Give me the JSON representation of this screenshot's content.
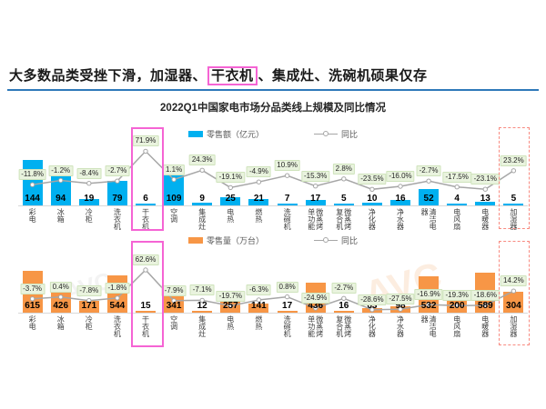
{
  "headline": {
    "prefix": "大多数品类受挫下滑，加湿器、",
    "highlight": "干衣机",
    "suffix": "、集成灶、洗碗机硕果仅存"
  },
  "chart_title": "2022Q1中国家电市场分品类线上规模及同比情况",
  "watermark": "AVC",
  "colors": {
    "blue_bar": "#00B0F0",
    "orange_bar": "#F79646",
    "yoy_line": "#A6A6A6",
    "badge_bg": "#E9F3DE",
    "badge_border": "#CFE3BC",
    "pink_highlight": "#F564D4",
    "red_highlight": "#F88A80",
    "underline_blue": "#2E79B9"
  },
  "chart_data": [
    {
      "type": "bar",
      "name": "retail-value",
      "bar_color": "#00B0F0",
      "legend": [
        "零售额（亿元）",
        "同比"
      ],
      "categories": [
        "彩电",
        "冰箱",
        "冷柜",
        "洗衣机",
        "干衣机",
        "空调",
        "集成灶",
        "电热",
        "燃热",
        "洗碗机",
        "微蒸烤单功能",
        "微蒸烤复合机",
        "净化器",
        "净水器",
        "清洁电器",
        "电风扇",
        "电暖器",
        "加湿器"
      ],
      "series": [
        {
          "name": "零售额（亿元）",
          "values": [
            144,
            94,
            19,
            79,
            6,
            109,
            9,
            25,
            21,
            7,
            17,
            5,
            10,
            16,
            52,
            4,
            13,
            5
          ]
        },
        {
          "name": "同比",
          "unit": "%",
          "values": [
            -11.8,
            -1.2,
            -8.4,
            -2.7,
            71.9,
            1.1,
            24.3,
            -19.1,
            -4.9,
            10.9,
            -15.3,
            2.8,
            -23.5,
            -16.0,
            -2.7,
            -17.5,
            -23.1,
            23.2
          ]
        }
      ],
      "ylim": [
        0,
        150
      ],
      "highlights": [
        {
          "category": "干衣机",
          "style": "pink-solid"
        },
        {
          "category": "加湿器",
          "style": "red-dashed"
        }
      ]
    },
    {
      "type": "bar",
      "name": "retail-volume",
      "bar_color": "#F79646",
      "legend": [
        "零售量（万台）",
        "同比"
      ],
      "categories": [
        "彩电",
        "冰箱",
        "冷柜",
        "洗衣机",
        "干衣机",
        "空调",
        "集成灶",
        "电热",
        "燃热",
        "洗碗机",
        "微蒸烤单功能",
        "微蒸烤复合机",
        "净化器",
        "净水器",
        "清洁电器",
        "电风扇",
        "电暖器",
        "加湿器"
      ],
      "series": [
        {
          "name": "零售量（万台）",
          "values": [
            615,
            426,
            171,
            544,
            15,
            341,
            12,
            257,
            141,
            17,
            436,
            16,
            63,
            98,
            532,
            200,
            589,
            304
          ]
        },
        {
          "name": "同比",
          "unit": "%",
          "values": [
            -3.7,
            0.4,
            -7.8,
            -1.8,
            62.6,
            -7.9,
            -7.1,
            -19.7,
            -6.3,
            0.8,
            -24.9,
            -2.7,
            -28.6,
            -27.5,
            -16.9,
            -19.3,
            -18.6,
            14.2
          ]
        }
      ],
      "ylim": [
        0,
        650
      ],
      "highlights": [
        {
          "category": "干衣机",
          "style": "pink-solid"
        },
        {
          "category": "加湿器",
          "style": "red-dashed"
        }
      ]
    }
  ]
}
